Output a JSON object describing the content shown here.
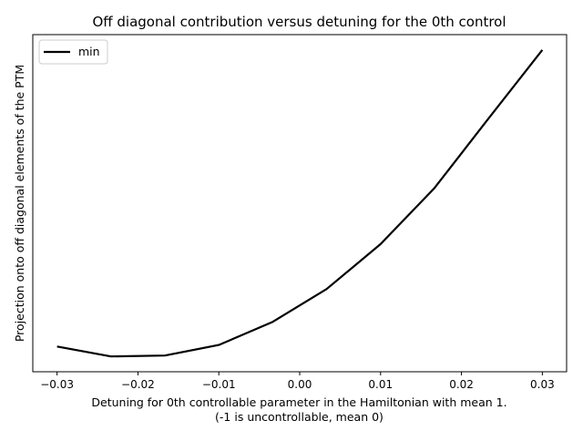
{
  "chart_data": {
    "type": "line",
    "title": "Off diagonal contribution versus detuning for the 0th control",
    "xlabel_line1": "Detuning for 0th controllable parameter in the Hamiltonian with mean 1.",
    "xlabel_line2": "(-1 is uncontrollable, mean 0)",
    "ylabel": "Projection onto off diagonal elements of the PTM",
    "xlim": [
      -0.033,
      0.033
    ],
    "x_ticks": [
      -0.03,
      -0.02,
      -0.01,
      0.0,
      0.01,
      0.02,
      0.03
    ],
    "x_tick_labels": [
      "−0.03",
      "−0.02",
      "−0.01",
      "0.00",
      "0.01",
      "0.02",
      "0.03"
    ],
    "y_ticks_visible": false,
    "ylim": [
      -0.05,
      1.05
    ],
    "legend_position": "top-left",
    "grid": false,
    "series": [
      {
        "name": "min",
        "color": "#000000",
        "x": [
          -0.03,
          -0.023333,
          -0.016667,
          -0.01,
          -0.003333,
          0.003333,
          0.01,
          0.016667,
          0.023333,
          0.03
        ],
        "y": [
          0.0323,
          0.0,
          0.003,
          0.0374,
          0.1128,
          0.22,
          0.3666,
          0.5495,
          0.7759,
          1.0
        ]
      }
    ]
  }
}
